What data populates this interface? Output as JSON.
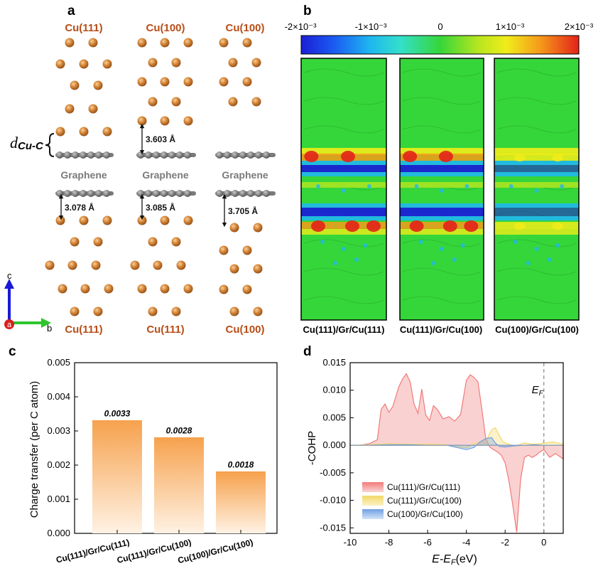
{
  "panel_a": {
    "label": "a",
    "columns": [
      {
        "top_label": "Cu(111)",
        "bottom_label": "Cu(111)",
        "upper_gap": "",
        "lower_gap": "3.078 Å"
      },
      {
        "top_label": "Cu(100)",
        "bottom_label": "Cu(111)",
        "upper_gap": "3.603 Å",
        "lower_gap": "3.085 Å"
      },
      {
        "top_label": "Cu(100)",
        "bottom_label": "Cu(100)",
        "upper_gap": "",
        "lower_gap": "3.705 Å"
      }
    ],
    "graphene_label": "Graphene",
    "dcu_main": "d",
    "dcu_sub": "Cu-C",
    "axes": {
      "c": "c",
      "b": "b",
      "a": "a"
    }
  },
  "panel_b": {
    "label": "b",
    "colorbar_ticks": [
      "-2×10⁻³",
      "-1×10⁻³",
      "0",
      "1×10⁻³",
      "2×10⁻³"
    ],
    "maps": [
      "Cu(111)/Gr/Cu(111)",
      "Cu(111)/Gr/Cu(100)",
      "Cu(100)/Gr/Cu(100)"
    ]
  },
  "panel_c": {
    "label": "c",
    "chart_data": {
      "type": "bar",
      "categories": [
        "Cu(111)/Gr/Cu(111)",
        "Cu(111)/Gr/Cu(100)",
        "Cu(100)/Gr/Cu(100)"
      ],
      "values": [
        0.0033,
        0.0028,
        0.0018
      ],
      "value_labels": [
        "0.0033",
        "0.0028",
        "0.0018"
      ],
      "ylabel": "Charge transfer (per C atom)",
      "ylim": [
        0,
        0.005
      ],
      "yticks": [
        "0.000",
        "0.001",
        "0.002",
        "0.003",
        "0.004",
        "0.005"
      ],
      "bar_color": "#f6a24e"
    }
  },
  "panel_d": {
    "label": "d",
    "chart_data": {
      "type": "area",
      "xlabel_main": "E-E",
      "xlabel_sub": "F",
      "xlabel_unit": "(eV)",
      "ylabel": "-COHP",
      "xlim": [
        -10,
        1
      ],
      "ylim": [
        -0.016,
        0.015
      ],
      "xticks": [
        "-10",
        "-8",
        "-6",
        "-4",
        "-2",
        "0"
      ],
      "yticks": [
        "0.015",
        "0.010",
        "0.005",
        "0.000",
        "-0.005",
        "-0.010",
        "-0.015"
      ],
      "fermi_label": "E",
      "fermi_sub": "F",
      "series": [
        {
          "name": "Cu(111)/Gr/Cu(111)",
          "color": "#f07a7a",
          "x": [
            -10,
            -9.5,
            -9,
            -8.6,
            -8.4,
            -8.2,
            -8,
            -7.8,
            -7.5,
            -7.3,
            -7.1,
            -6.9,
            -6.7,
            -6.5,
            -6.3,
            -6.1,
            -5.9,
            -5.7,
            -5.5,
            -5.2,
            -4.9,
            -4.6,
            -4.3,
            -4,
            -3.8,
            -3.6,
            -3.4,
            -3.2,
            -3,
            -2.8,
            -2.6,
            -2.4,
            -2.2,
            -2,
            -1.8,
            -1.6,
            -1.4,
            -1.2,
            -1,
            -0.8,
            -0.6,
            -0.4,
            -0.2,
            0,
            0.3,
            0.6,
            1
          ],
          "y": [
            0,
            0,
            0.0003,
            0.001,
            0.0065,
            0.0075,
            0.006,
            0.007,
            0.0105,
            0.012,
            0.013,
            0.0115,
            0.0075,
            0.0058,
            0.0102,
            0.0055,
            0.0045,
            0.0072,
            0.0065,
            0.0048,
            0.0052,
            0.0044,
            0.0056,
            0.0118,
            0.0128,
            0.0123,
            0.0115,
            0.0065,
            0.0012,
            -0.0003,
            -0.0008,
            -0.0012,
            -0.0018,
            -0.0032,
            -0.0065,
            -0.011,
            -0.0158,
            -0.0062,
            -0.0022,
            -0.0018,
            -0.0022,
            -0.0018,
            -0.0012,
            -0.0008,
            -0.0022,
            -0.0015,
            -0.0025
          ]
        },
        {
          "name": "Cu(111)/Gr/Cu(100)",
          "color": "#f3d968",
          "x": [
            -10,
            -9,
            -8,
            -7,
            -6,
            -5,
            -4.5,
            -4,
            -3.6,
            -3.2,
            -2.9,
            -2.7,
            -2.5,
            -2.3,
            -2.1,
            -1.8,
            -1.5,
            -1.2,
            -1,
            -0.5,
            0,
            0.5,
            1
          ],
          "y": [
            0,
            0.0001,
            0.0003,
            0.0002,
            0.0002,
            0.0001,
            -0.0002,
            -0.0005,
            0.0003,
            0.0006,
            0.0014,
            0.0028,
            0.0032,
            0.0018,
            0.0006,
            0.0002,
            -0.0002,
            0.0002,
            0.0004,
            0.0002,
            0.0004,
            0.0006,
            0.0002
          ]
        },
        {
          "name": "Cu(100)/Gr/Cu(100)",
          "color": "#6f9fe3",
          "x": [
            -10,
            -9,
            -8,
            -7,
            -6,
            -5,
            -4.5,
            -4,
            -3.6,
            -3.3,
            -3,
            -2.7,
            -2.5,
            -2.3,
            -2,
            -1.5,
            -1,
            -0.5,
            0,
            0.5,
            1
          ],
          "y": [
            0,
            0,
            0.0001,
            0.0001,
            0,
            0,
            -0.0004,
            -0.0008,
            -0.0004,
            0.0006,
            0.0012,
            0.0014,
            0.0004,
            -0.0002,
            -0.0003,
            -0.0001,
            0,
            0.0001,
            0,
            0,
            0
          ]
        }
      ]
    }
  }
}
